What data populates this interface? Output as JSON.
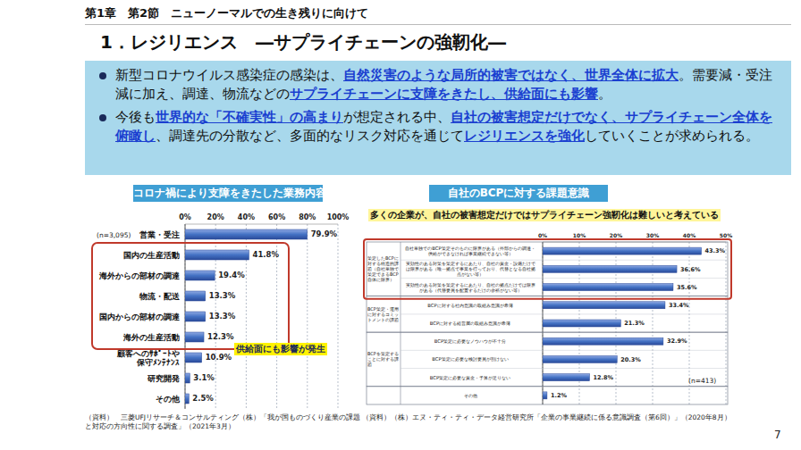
{
  "header": {
    "section": "第1章　第2節　ニューノーマルでの生き残りに向けて",
    "title": "1．レジリエンス　―サプライチェーンの強靭化―"
  },
  "bullets": [
    {
      "segments": [
        {
          "text": "新型コロナウイルス感染症の感染は、",
          "emphasis": false
        },
        {
          "text": "自然災害のような局所的被害ではなく、世界全体に拡大",
          "emphasis": true
        },
        {
          "text": "。需要減・受注減に加え、調達、物流などの",
          "emphasis": false
        },
        {
          "text": "サプライチェーンに支障をきたし、供給面にも影響",
          "emphasis": true
        },
        {
          "text": "。",
          "emphasis": false
        }
      ]
    },
    {
      "segments": [
        {
          "text": "今後も",
          "emphasis": false
        },
        {
          "text": "世界的な「不確実性」の高まり",
          "emphasis": true
        },
        {
          "text": "が想定される中、",
          "emphasis": false
        },
        {
          "text": "自社の被害想定だけでなく、サプライチェーン全体を俯瞰し",
          "emphasis": true
        },
        {
          "text": "、調達先の分散など、多面的なリスク対応を通じて",
          "emphasis": false
        },
        {
          "text": "レジリエンスを強化",
          "emphasis": true
        },
        {
          "text": "していくことが求められる。",
          "emphasis": false
        }
      ]
    }
  ],
  "chart_data": [
    {
      "type": "bar",
      "orientation": "horizontal",
      "title": "コロナ禍により支障をきたした業務内容",
      "note": "(n=3,095)",
      "annotation": "供給面にも影響が発生",
      "source": "（資料）　三菱UFJリサーチ＆コンサルティング（株）「我が国ものづくり産業の課題と対応の方向性に関する調査」（2021年3月）",
      "categories": [
        "営業・受注",
        "国内の生産活動",
        "海外からの部材の調達",
        "物流・配送",
        "国内からの部材の調達",
        "海外の生産活動",
        "顧客へのｻﾎﾟｰﾄや\n保守ﾒﾝﾃﾅﾝｽ",
        "研究開発",
        "その他"
      ],
      "values": [
        79.9,
        41.8,
        19.4,
        13.3,
        13.3,
        12.3,
        10.9,
        3.1,
        2.5
      ],
      "value_labels": [
        "79.9%",
        "41.8%",
        "19.4%",
        "13.3%",
        "13.3%",
        "12.3%",
        "10.9%",
        "3.1%",
        "2.5%"
      ],
      "data_labels": true,
      "color": "#4472c4",
      "grid": true,
      "xlim": [
        0,
        100
      ],
      "xticks": [
        {
          "value": 0,
          "label": "0%"
        },
        {
          "value": 20,
          "label": "20%"
        },
        {
          "value": 40,
          "label": "40%"
        },
        {
          "value": 60,
          "label": "60%"
        },
        {
          "value": 80,
          "label": "80%"
        },
        {
          "value": 100,
          "label": "100%"
        }
      ]
    },
    {
      "type": "bar",
      "orientation": "horizontal",
      "title": "自社のBCPに対する課題意識",
      "subtitle": "多くの企業が、自社の被害想定だけではサプライチェーン強靭化は難しいと考えている",
      "note": "(n=413)",
      "source": "（資料）（株）エヌ・ティ・ティ・データ経営研究所「企業の事業継続に係る意識調査（第6回）」（2020年8月）",
      "groups": [
        {
          "label": "策定したBCPに対する構造的課題（自社単独で策定できるBCP自体に限界）",
          "size": 3
        },
        {
          "label": "BCP策定・運用に対するコミットメントの課題",
          "size": 2
        },
        {
          "label": "BCPを策定することに対する課題",
          "size": 3
        },
        {
          "label": null,
          "size": 1
        }
      ],
      "categories": [
        "自社単独でのBCP策定そのものに限界がある（外部からの調達・供給ができなければ事業継続できない等）",
        "実効性のある対策を策定するにあたり、自社の資金・設備だけでは限界がある（唯一拠点で事業を行っており、代替となる自社拠点がない等）",
        "実効性のある対策を策定するにあたり、自社の拠点だけでは限界がある（代替要員を配置するだけの余裕がない等）",
        "BCPに対する社内意識の取組み意識が希薄",
        "BCPに対する経営層の取組み意識が希薄",
        "BCP策定に必要なノウハウが不十分",
        "BCP策定に必要な検討要員が割けない",
        "BCP策定に必要な資金・予算が足りない",
        "その他"
      ],
      "values": [
        43.3,
        36.6,
        35.6,
        33.4,
        21.3,
        32.9,
        20.3,
        12.8,
        1.2
      ],
      "value_labels": [
        "43.3%",
        "36.6%",
        "35.6%",
        "33.4%",
        "21.3%",
        "32.9%",
        "20.3%",
        "12.8%",
        "1.2%"
      ],
      "data_labels": true,
      "color": "#4472c4",
      "grid": true,
      "xlim": [
        0,
        50
      ],
      "xticks": [
        {
          "value": 0,
          "label": "0%"
        },
        {
          "value": 10,
          "label": "10%"
        },
        {
          "value": 20,
          "label": "20%"
        },
        {
          "value": 30,
          "label": "30%"
        },
        {
          "value": 40,
          "label": "40%"
        },
        {
          "value": 50,
          "label": "50%"
        }
      ]
    }
  ],
  "page_number": "7"
}
